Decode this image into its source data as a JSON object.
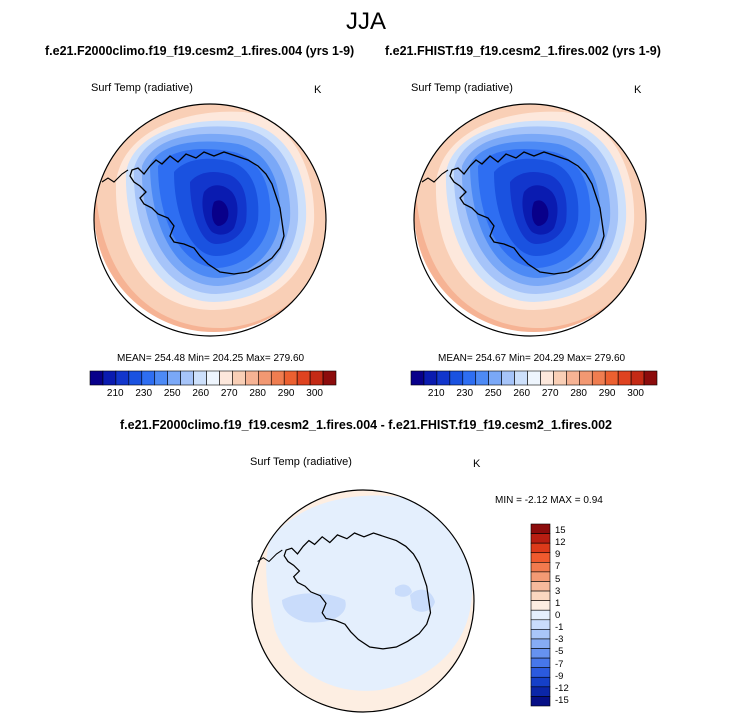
{
  "main_title": "JJA",
  "panels": [
    {
      "title": "f.e21.F2000climo.f19_f19.cesm2_1.fires.004 (yrs 1-9)",
      "variable": "Surf Temp (radiative)",
      "units": "K",
      "stats": "MEAN= 254.48  Min= 204.25  Max= 279.60"
    },
    {
      "title": "f.e21.FHIST.f19_f19.cesm2_1.fires.002 (yrs 1-9)",
      "variable": "Surf Temp (radiative)",
      "units": "K",
      "stats": "MEAN= 254.67  Min= 204.29  Max= 279.60"
    }
  ],
  "abs_colorbar": {
    "colors": [
      "#08008a",
      "#0a1bb0",
      "#1236cc",
      "#1a52e0",
      "#2e6ef2",
      "#4d8af5",
      "#7aa8f7",
      "#a6c4f9",
      "#cde0fb",
      "#eef5fd",
      "#fde8dc",
      "#f9cfb6",
      "#f6b394",
      "#f29872",
      "#ef7d50",
      "#ec6030",
      "#df4320",
      "#c42a15",
      "#8c0c0c"
    ],
    "labels": [
      "210",
      "230",
      "250",
      "260",
      "270",
      "280",
      "290",
      "300"
    ]
  },
  "diff": {
    "title": "f.e21.F2000climo.f19_f19.cesm2_1.fires.004 - f.e21.FHIST.f19_f19.cesm2_1.fires.002",
    "variable": "Surf Temp (radiative)",
    "units": "K",
    "minmax": "MIN =  -2.12 MAX =   0.94",
    "colorbar": {
      "colors_top_to_bottom": [
        "#8c0c0c",
        "#b81e12",
        "#dc3a1a",
        "#ef5a2e",
        "#f27a4e",
        "#f49a74",
        "#f7ba9c",
        "#fbd7c0",
        "#fdeee2",
        "#e4effd",
        "#c9dcfb",
        "#a9c6f8",
        "#86acf4",
        "#6692f0",
        "#4777ea",
        "#2b5ade",
        "#1540c8",
        "#0b26a8",
        "#060f86"
      ],
      "labels_top_to_bottom": [
        "15",
        "12",
        "9",
        "7",
        "5",
        "3",
        "1",
        "0",
        "-1",
        "-3",
        "-5",
        "-7",
        "-9",
        "-12",
        "-15"
      ]
    }
  }
}
